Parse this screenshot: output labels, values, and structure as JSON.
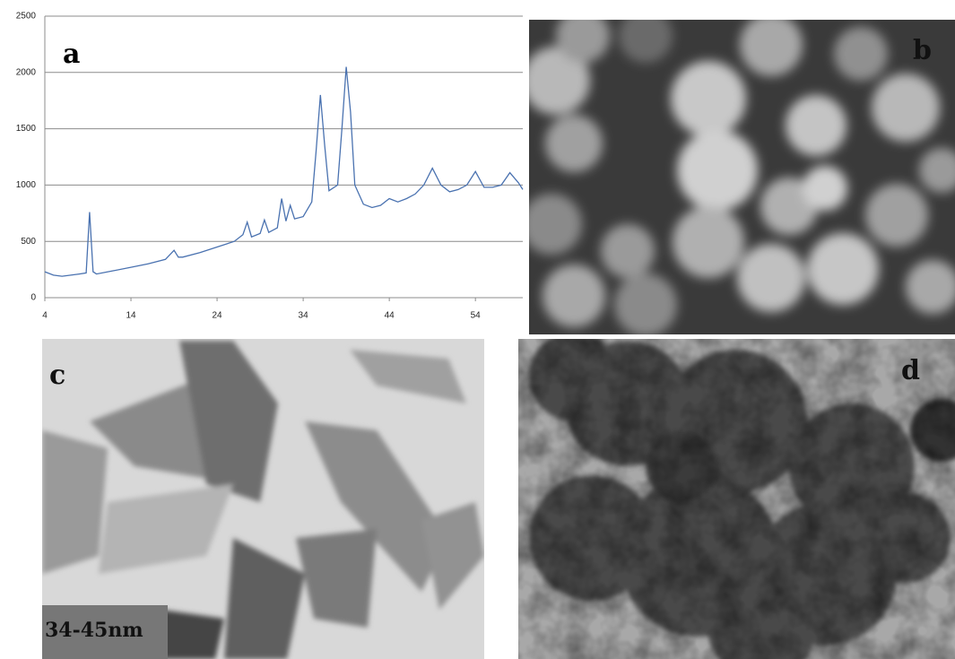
{
  "chart_data": {
    "type": "line",
    "label": "a",
    "x": [
      4,
      5,
      6,
      7,
      8,
      8.8,
      9.2,
      9.6,
      10,
      12,
      14,
      16,
      18,
      19,
      19.5,
      20,
      22,
      24,
      26,
      27,
      27.5,
      28,
      29,
      29.5,
      30,
      31,
      31.5,
      32,
      32.5,
      33,
      34,
      35,
      35.5,
      36,
      36.5,
      37,
      38,
      38.5,
      39,
      39.5,
      40,
      41,
      42,
      43,
      44,
      45,
      46,
      47,
      48,
      49,
      50,
      51,
      52,
      53,
      54,
      55,
      56,
      57,
      58,
      59,
      59.5
    ],
    "series": [
      {
        "color": "#4a72b0",
        "values": [
          230,
          200,
          190,
          200,
          210,
          220,
          760,
          230,
          210,
          240,
          270,
          300,
          340,
          420,
          360,
          360,
          400,
          450,
          500,
          560,
          670,
          540,
          570,
          690,
          580,
          620,
          880,
          680,
          820,
          700,
          720,
          850,
          1300,
          1800,
          1350,
          950,
          1000,
          1500,
          2050,
          1650,
          1000,
          830,
          800,
          820,
          880,
          850,
          880,
          920,
          1000,
          1150,
          1000,
          940,
          960,
          1000,
          1120,
          980,
          980,
          1000,
          1110,
          1020,
          960
        ]
      }
    ],
    "xlim": [
      4,
      59.5
    ],
    "ylim": [
      0,
      2500
    ],
    "xticks": [
      4,
      14,
      24,
      34,
      44,
      54
    ],
    "yticks": [
      0,
      500,
      1000,
      1500,
      2000,
      2500
    ],
    "grid": true
  },
  "images": [
    {
      "label": "b"
    },
    {
      "label": "c",
      "scale_label": "34-45nm"
    },
    {
      "label": "d"
    }
  ]
}
